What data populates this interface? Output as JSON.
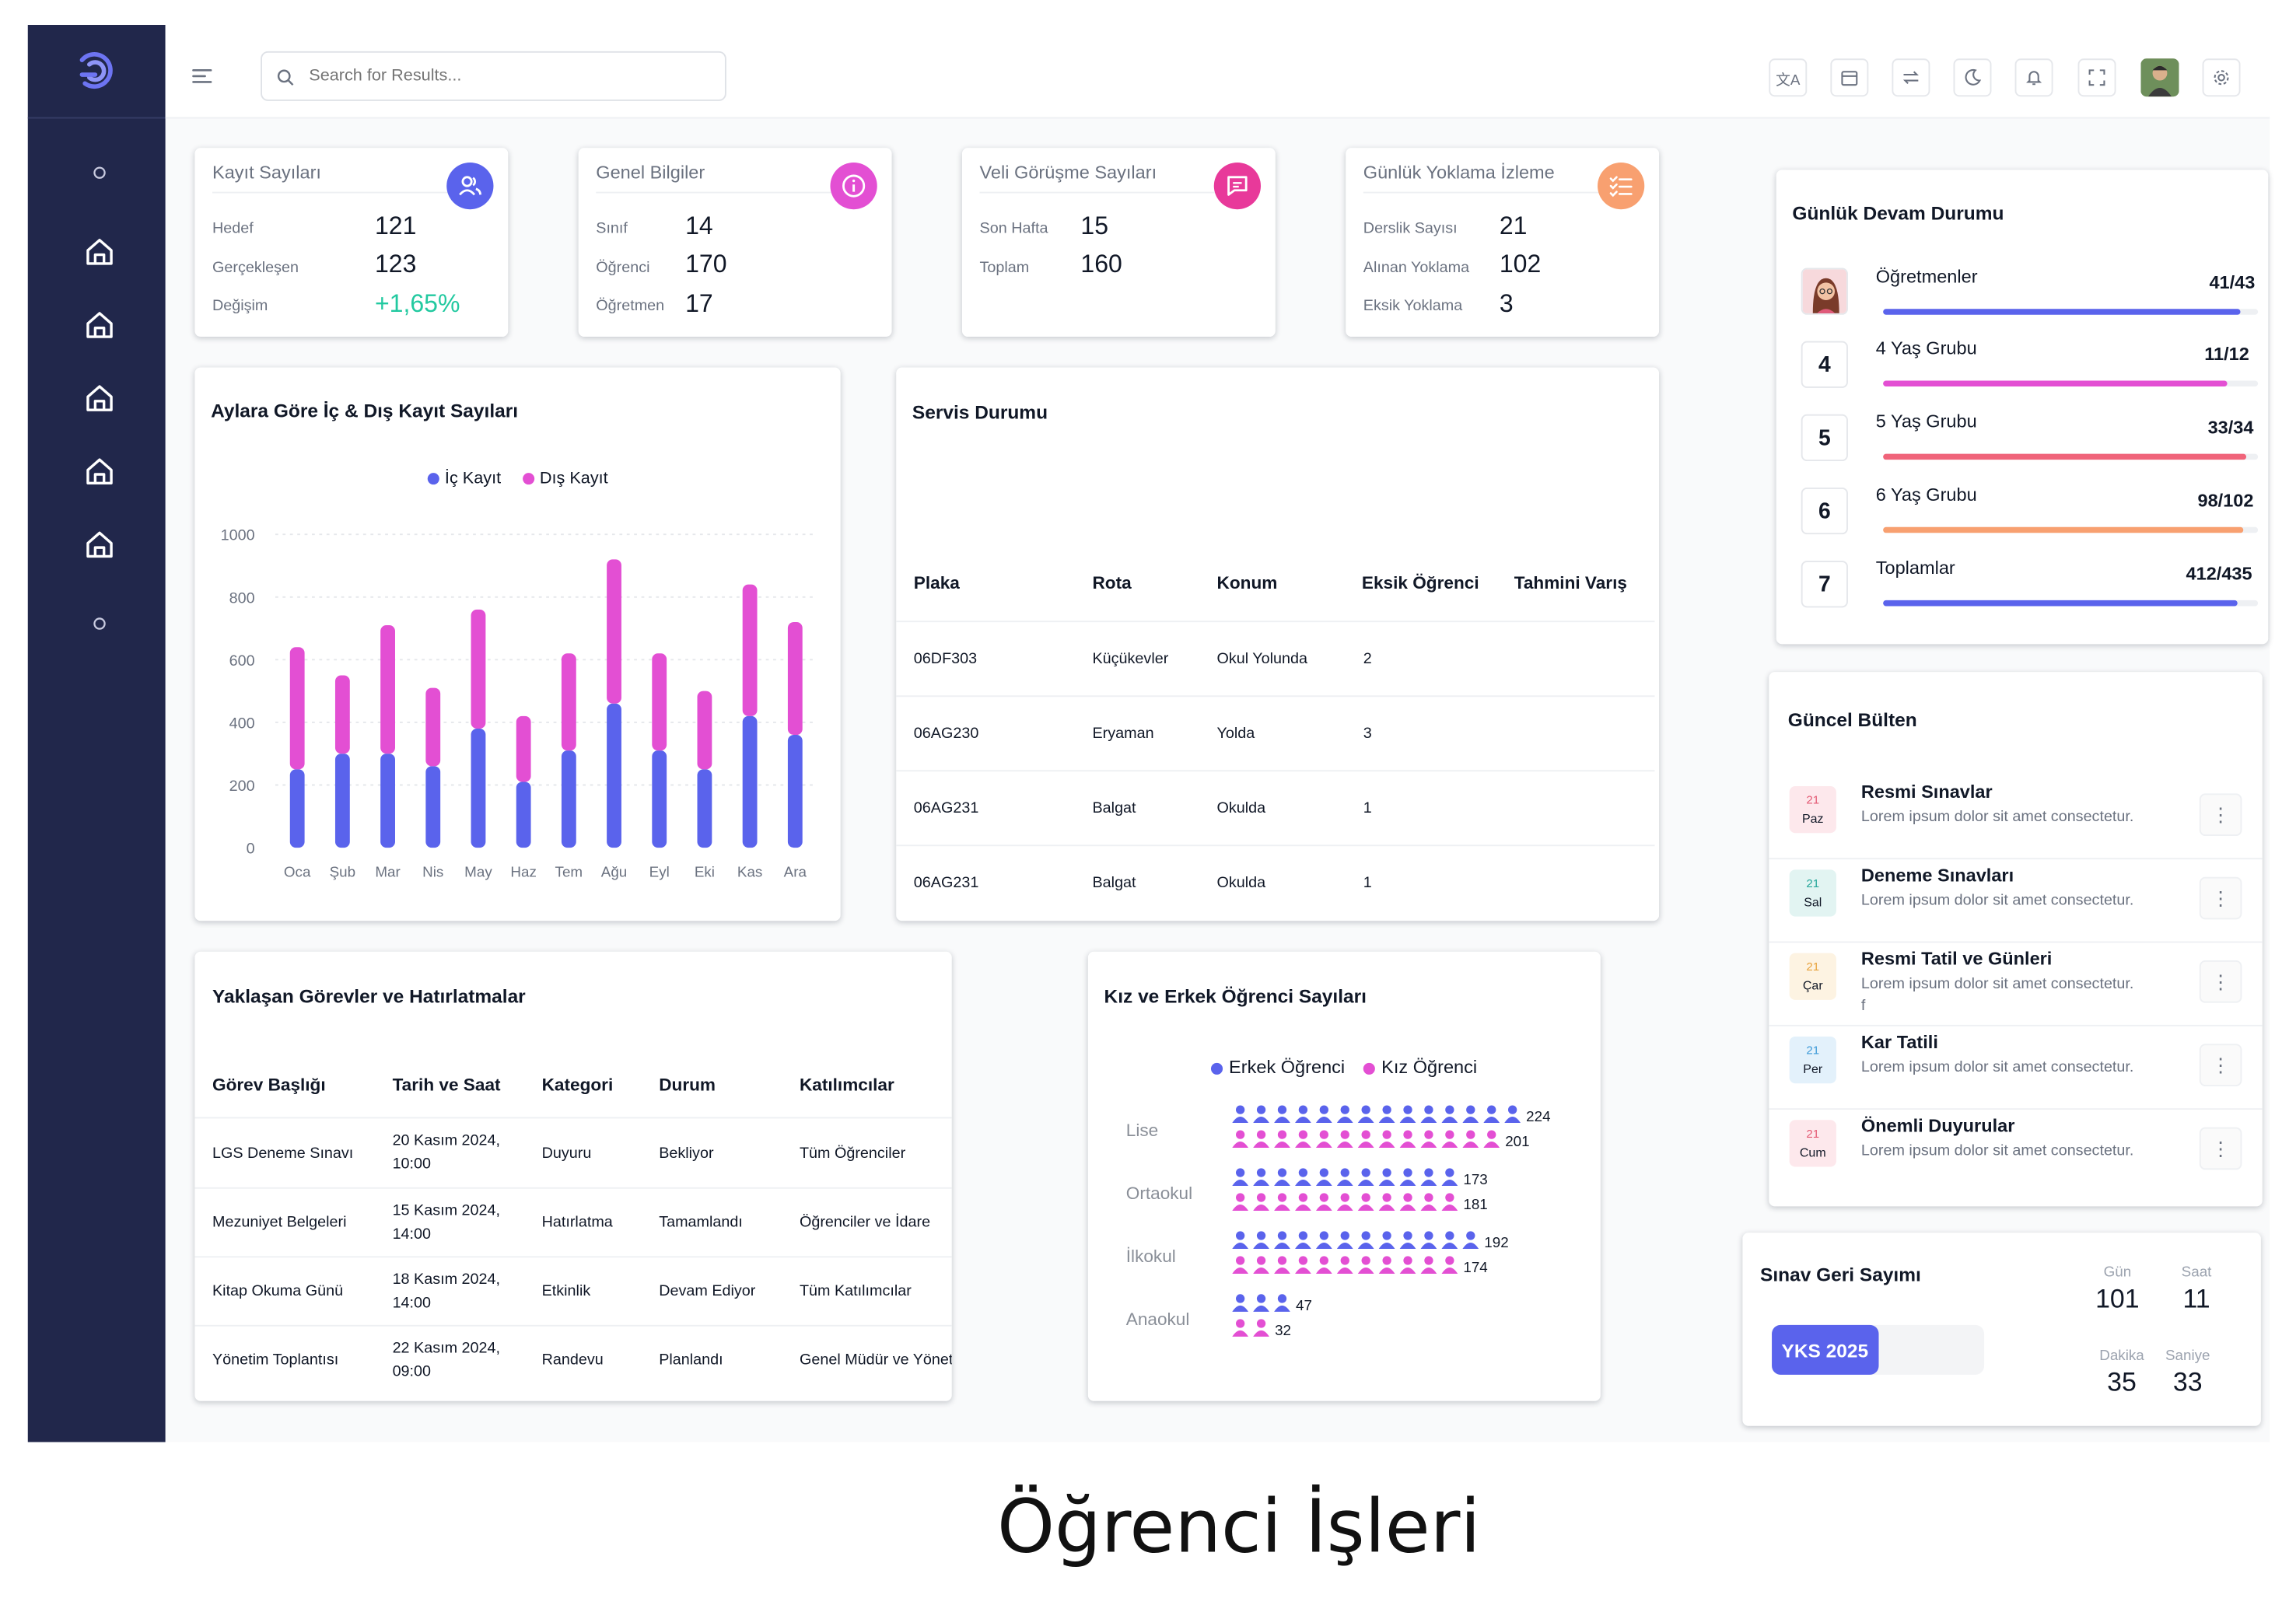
{
  "colors": {
    "sidebar": "#21274b",
    "indigo": "#5a63ec",
    "pink": "#e34fd3",
    "red": "#f0647a",
    "orange": "#f8a070",
    "green": "#22c9a0"
  },
  "search": {
    "placeholder": "Search for Results..."
  },
  "topbar_icons": [
    "translate-icon",
    "calendar-icon",
    "swap-icon",
    "moon-icon",
    "bell-icon",
    "fullscreen-icon",
    "avatar",
    "gear-icon"
  ],
  "stats": [
    {
      "title": "Kayıt Sayıları",
      "icon": "users-icon",
      "rows": [
        {
          "label": "Hedef",
          "value": "121"
        },
        {
          "label": "Gerçekleşen",
          "value": "123"
        },
        {
          "label": "Değişim",
          "value": "+1,65%"
        }
      ]
    },
    {
      "title": "Genel Bilgiler",
      "icon": "info-icon",
      "rows": [
        {
          "label": "Sınıf",
          "value": "14"
        },
        {
          "label": "Öğrenci",
          "value": "170"
        },
        {
          "label": "Öğretmen",
          "value": "17"
        }
      ]
    },
    {
      "title": "Veli Görüşme Sayıları",
      "icon": "message-icon",
      "rows": [
        {
          "label": "Son Hafta",
          "value": "15"
        },
        {
          "label": "Toplam",
          "value": "160"
        }
      ]
    },
    {
      "title": "Günlük Yoklama İzleme",
      "icon": "checklist-icon",
      "rows": [
        {
          "label": "Derslik Sayısı",
          "value": "21"
        },
        {
          "label": "Alınan Yoklama",
          "value": "102"
        },
        {
          "label": "Eksik Yoklama",
          "value": "3"
        }
      ]
    }
  ],
  "chart_data": {
    "type": "bar",
    "stacked": true,
    "title": "Aylara Göre İç & Dış Kayıt Sayıları",
    "categories": [
      "Oca",
      "Şub",
      "Mar",
      "Nis",
      "May",
      "Haz",
      "Tem",
      "Ağu",
      "Eyl",
      "Eki",
      "Kas",
      "Ara"
    ],
    "series": [
      {
        "name": "İç Kayıt",
        "color": "#5a63ec",
        "values": [
          250,
          300,
          300,
          260,
          380,
          210,
          310,
          460,
          310,
          250,
          420,
          360
        ]
      },
      {
        "name": "Dış Kayıt",
        "color": "#e34fd3",
        "values": [
          390,
          250,
          410,
          250,
          380,
          210,
          310,
          460,
          310,
          250,
          420,
          360
        ]
      }
    ],
    "ylim": [
      0,
      1000
    ],
    "yticks": [
      0,
      200,
      400,
      600,
      800,
      1000
    ],
    "legend": "top-center",
    "grid": true
  },
  "service": {
    "title": "Servis Durumu",
    "headers": [
      "Plaka",
      "Rota",
      "Konum",
      "Eksik Öğrenci",
      "Tahmini Varış"
    ],
    "rows": [
      [
        "06DF303",
        "Küçükevler",
        "Okul Yolunda",
        "2",
        ""
      ],
      [
        "06AG230",
        "Eryaman",
        "Yolda",
        "3",
        ""
      ],
      [
        "06AG231",
        "Balgat",
        "Okulda",
        "1",
        ""
      ],
      [
        "06AG231",
        "Balgat",
        "Okulda",
        "1",
        ""
      ]
    ]
  },
  "tasks": {
    "title": "Yaklaşan Görevler ve Hatırlatmalar",
    "headers": [
      "Görev Başlığı",
      "Tarih ve Saat",
      "Kategori",
      "Durum",
      "Katılımcılar"
    ],
    "rows": [
      {
        "title": "LGS Deneme Sınavı",
        "date1": "20 Kasım 2024,",
        "date2": "10:00",
        "category": "Duyuru",
        "status": "Bekliyor",
        "participants": "Tüm Öğrenciler"
      },
      {
        "title": "Mezuniyet Belgeleri",
        "date1": "15 Kasım 2024,",
        "date2": "14:00",
        "category": "Hatırlatma",
        "status": "Tamamlandı",
        "participants": "Öğrenciler ve İdare"
      },
      {
        "title": "Kitap Okuma Günü",
        "date1": "18 Kasım 2024,",
        "date2": "14:00",
        "category": "Etkinlik",
        "status": "Devam Ediyor",
        "participants": "Tüm Katılımcılar"
      },
      {
        "title": "Yönetim Toplantısı",
        "date1": "22 Kasım 2024,",
        "date2": "09:00",
        "category": "Randevu",
        "status": "Planlandı",
        "participants": "Genel Müdür ve Yönetim"
      }
    ]
  },
  "gender": {
    "title": "Kız ve Erkek Öğrenci Sayıları",
    "legend": [
      "Erkek Öğrenci",
      "Kız Öğrenci"
    ],
    "groups": [
      {
        "label": "Lise",
        "male": 224,
        "female": 201
      },
      {
        "label": "Ortaokul",
        "male": 173,
        "female": 181
      },
      {
        "label": "İlkokul",
        "male": 192,
        "female": 174
      },
      {
        "label": "Anaokul",
        "male": 47,
        "female": 32
      }
    ]
  },
  "attendance": {
    "title": "Günlük Devam Durumu",
    "rows": [
      {
        "badge": "",
        "label": "Öğretmenler",
        "value": "41/43",
        "ratio": 0.953,
        "color": "#5a63ec"
      },
      {
        "badge": "4",
        "label": "4 Yaş Grubu",
        "value": "11/12",
        "ratio": 0.917,
        "color": "#e34fd3"
      },
      {
        "badge": "5",
        "label": "5 Yaş Grubu",
        "value": "33/34",
        "ratio": 0.97,
        "color": "#f0647a"
      },
      {
        "badge": "6",
        "label": "6 Yaş Grubu",
        "value": "98/102",
        "ratio": 0.961,
        "color": "#f8a070"
      },
      {
        "badge": "7",
        "label": "Toplamlar",
        "value": "412/435",
        "ratio": 0.947,
        "color": "#5a63ec"
      }
    ]
  },
  "bulletin": {
    "title": "Güncel Bülten",
    "items": [
      {
        "day": "21",
        "weekday": "Paz",
        "title": "Resmi Sınavlar",
        "desc": "Lorem ipsum dolor sit amet consectetur.",
        "bg": "#fde8ec",
        "fg": "#e45a74"
      },
      {
        "day": "21",
        "weekday": "Sal",
        "title": "Deneme Sınavları",
        "desc": "Lorem ipsum dolor sit amet consectetur.",
        "bg": "#e2f4f2",
        "fg": "#26a69a"
      },
      {
        "day": "21",
        "weekday": "Çar",
        "title": "Resmi Tatil ve Günleri",
        "desc": "Lorem ipsum dolor sit amet consectetur. f",
        "bg": "#fdf3e2",
        "fg": "#e8a23c"
      },
      {
        "day": "21",
        "weekday": "Per",
        "title": "Kar Tatili",
        "desc": "Lorem ipsum dolor sit amet consectetur.",
        "bg": "#e3f1fb",
        "fg": "#3d9ad8"
      },
      {
        "day": "21",
        "weekday": "Cum",
        "title": "Önemli Duyurular",
        "desc": "Lorem ipsum dolor sit amet consectetur.",
        "bg": "#fde8ec",
        "fg": "#e45a74"
      }
    ]
  },
  "countdown": {
    "title": "Sınav Geri Sayımı",
    "exam": "YKS 2025",
    "progress": 0.5,
    "days_label": "Gün",
    "days": "101",
    "hours_label": "Saat",
    "hours": "11",
    "minutes_label": "Dakika",
    "minutes": "35",
    "seconds_label": "Saniye",
    "seconds": "33"
  },
  "caption": "Öğrenci İşleri"
}
